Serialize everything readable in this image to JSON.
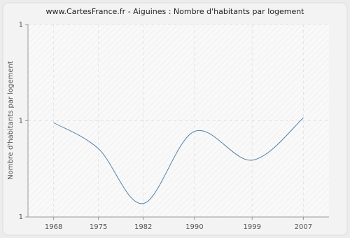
{
  "chart_data": {
    "type": "line",
    "title": "www.CartesFrance.fr - Aiguines : Nombre d'habitants par logement",
    "y_label": "Nombre d'habitants par logement",
    "x": [
      1968,
      1975,
      1982,
      1990,
      1999,
      2007
    ],
    "values": [
      1.298,
      1.271,
      1.214,
      1.289,
      1.259,
      1.303
    ],
    "color": "#5682aa",
    "xlim": [
      1964,
      2011
    ],
    "xticks": [
      1968,
      1975,
      1982,
      1990,
      1999,
      2007
    ],
    "ylim": [
      1.2,
      1.4
    ],
    "yticks": [
      {
        "value": 1.2,
        "label": "1"
      },
      {
        "value": 1.3,
        "label": "1"
      },
      {
        "value": 1.4,
        "label": "1"
      }
    ],
    "grid": true
  }
}
